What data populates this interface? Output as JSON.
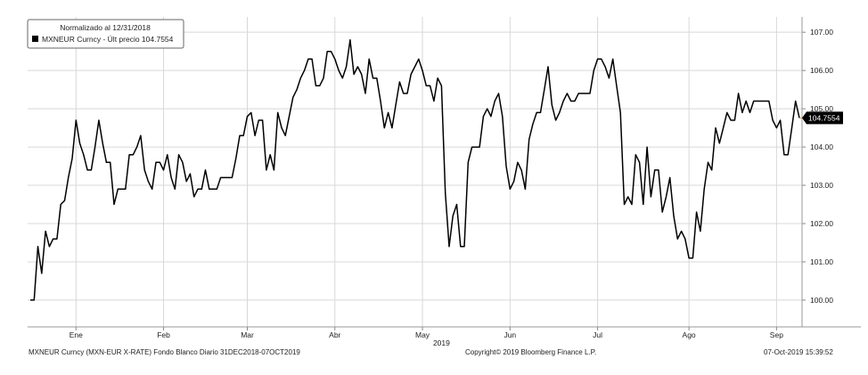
{
  "chart_data": {
    "type": "line",
    "legend": {
      "header": "Normalizado al 12/31/2018",
      "series_label": "MXNEUR Curncy - Últ precio 104.7554",
      "position": "top-left"
    },
    "series": [
      {
        "name": "MXNEUR Curncy",
        "color": "#000000",
        "values": [
          100.0,
          100.0,
          101.4,
          100.7,
          101.8,
          101.4,
          101.6,
          101.6,
          102.5,
          102.6,
          103.2,
          103.7,
          104.7,
          104.1,
          103.8,
          103.4,
          103.4,
          104.0,
          104.7,
          104.1,
          103.6,
          103.6,
          102.5,
          102.9,
          102.9,
          102.9,
          103.8,
          103.8,
          104.0,
          104.3,
          103.4,
          103.1,
          102.9,
          103.6,
          103.6,
          103.4,
          103.8,
          103.2,
          102.9,
          103.8,
          103.6,
          103.1,
          103.3,
          102.7,
          102.9,
          102.9,
          103.4,
          102.9,
          102.9,
          102.9,
          103.2,
          103.2,
          103.2,
          103.2,
          103.7,
          104.3,
          104.3,
          104.8,
          104.9,
          104.3,
          104.7,
          104.7,
          103.4,
          103.8,
          103.4,
          104.9,
          104.5,
          104.3,
          104.8,
          105.3,
          105.5,
          105.8,
          106.0,
          106.3,
          106.3,
          105.6,
          105.6,
          105.8,
          106.5,
          106.5,
          106.3,
          106.0,
          105.8,
          106.1,
          106.8,
          105.9,
          106.1,
          105.9,
          105.4,
          106.3,
          105.8,
          105.8,
          105.2,
          104.5,
          104.9,
          104.5,
          105.1,
          105.7,
          105.4,
          105.4,
          105.9,
          106.1,
          106.3,
          106.0,
          105.6,
          105.6,
          105.2,
          105.8,
          105.6,
          102.8,
          101.4,
          102.2,
          102.5,
          101.4,
          101.4,
          103.6,
          104.0,
          104.0,
          104.0,
          104.8,
          105.0,
          104.8,
          105.2,
          105.4,
          104.8,
          103.5,
          102.9,
          103.1,
          103.6,
          103.4,
          102.9,
          104.2,
          104.6,
          104.9,
          104.9,
          105.5,
          106.1,
          105.1,
          104.7,
          104.9,
          105.2,
          105.4,
          105.2,
          105.2,
          105.4,
          105.4,
          105.4,
          105.4,
          106.0,
          106.3,
          106.3,
          106.1,
          105.8,
          106.3,
          105.6,
          104.9,
          102.5,
          102.7,
          102.5,
          103.8,
          103.6,
          102.5,
          104.0,
          102.7,
          103.4,
          103.4,
          102.3,
          102.7,
          103.2,
          102.2,
          101.6,
          101.8,
          101.6,
          101.1,
          101.1,
          102.3,
          101.8,
          102.9,
          103.6,
          103.4,
          104.5,
          104.1,
          104.5,
          104.9,
          104.7,
          104.7,
          105.4,
          104.9,
          105.2,
          104.9,
          105.2,
          105.2,
          105.2,
          105.2,
          105.2,
          104.7,
          104.5,
          104.7,
          103.8,
          103.8,
          104.5,
          105.2,
          104.76
        ]
      }
    ],
    "ylim": [
      99.3,
      107.4
    ],
    "y_ticks": [
      {
        "value": 100,
        "label": "100.00"
      },
      {
        "value": 101,
        "label": "101.00"
      },
      {
        "value": 102,
        "label": "102.00"
      },
      {
        "value": 103,
        "label": "103.00"
      },
      {
        "value": 104,
        "label": "104.00"
      },
      {
        "value": 105,
        "label": "105.00"
      },
      {
        "value": 106,
        "label": "106.00"
      },
      {
        "value": 107,
        "label": "107.00"
      }
    ],
    "last_value_label": "104.7554",
    "x_ticks": [
      {
        "index": 12,
        "label": "Ene"
      },
      {
        "index": 35,
        "label": "Feb"
      },
      {
        "index": 57,
        "label": "Mar"
      },
      {
        "index": 80,
        "label": "Abr"
      },
      {
        "index": 103,
        "label": "May"
      },
      {
        "index": 126,
        "label": "Jun"
      },
      {
        "index": 149,
        "label": "Jul"
      },
      {
        "index": 173,
        "label": "Ago"
      },
      {
        "index": 196,
        "label": "Sep"
      }
    ],
    "year_label": {
      "index": 108,
      "label": "2019"
    },
    "grid": true,
    "axis_position": "right",
    "colors": {
      "line": "#000000",
      "grid": "#d8d8d8",
      "last_price": "#e0a040"
    }
  },
  "footer": {
    "left": "MXNEUR Curncy (MXN-EUR X-RATE) Fondo Blanco  Diario 31DEC2018-07OCT2019",
    "center": "Copyright© 2019 Bloomberg Finance L.P.",
    "right": "07-Oct-2019 15:39:52"
  }
}
